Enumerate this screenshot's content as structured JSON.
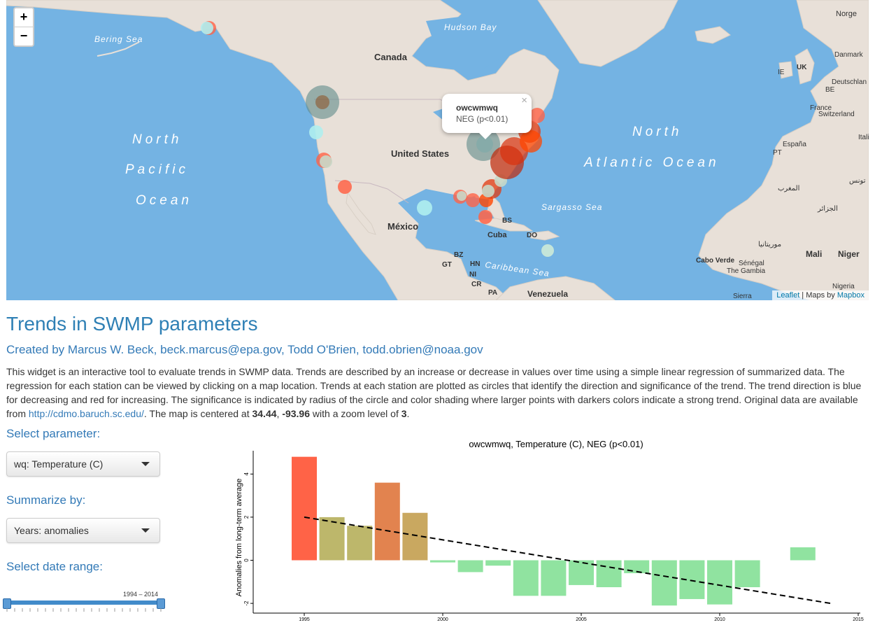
{
  "map": {
    "zoom_in": "+",
    "zoom_out": "−",
    "labels": {
      "bering": "Bering Sea",
      "hudson": "Hudson Bay",
      "canada": "Canada",
      "us": "United States",
      "mexico": "México",
      "north_pacific": [
        "North",
        "Pacific",
        "Ocean"
      ],
      "north_atlantic": [
        "North",
        "Atlantic Ocean"
      ],
      "sargasso": "Sargasso Sea",
      "caribbean": "Caribbean Sea",
      "cuba": "Cuba",
      "bs": "BS",
      "do": "DO",
      "bz": "BZ",
      "gt": "GT",
      "hn": "HN",
      "ni": "NI",
      "cr": "CR",
      "pa": "PA",
      "venezuela": "Venezuela",
      "norge": "Norge",
      "danmark": "Danmark",
      "ie": "IE",
      "uk": "UK",
      "deutschland": "Deutschlan",
      "be": "BE",
      "france": "France",
      "switzerland": "Switzerland",
      "espana": "España",
      "pt": "PT",
      "morocco": "المغرب",
      "tunisia": "تونس",
      "algeria": "الجزائر",
      "mauritania": "موريتانيا",
      "mali": "Mali",
      "niger": "Niger",
      "cabo_verde": "Cabo Verde",
      "senegal": "Sénégal",
      "gambia": "The Gambia",
      "nigeria": "Nigeria",
      "sierra": "Sierra",
      "italia": "Italia"
    },
    "popup": {
      "station": "owcwmwq",
      "result": "NEG (p<0.01)",
      "close": "×"
    },
    "attribution": {
      "leaflet": "Leaflet",
      "sep": " | Maps by ",
      "mapbox": "Mapbox"
    }
  },
  "header": {
    "title": "Trends in SWMP parameters",
    "created_prefix": "Created by Marcus W. Beck, ",
    "email1": "beck.marcus@epa.gov",
    "mid": ", Todd O'Brien, ",
    "email2": "todd.obrien@noaa.gov"
  },
  "description": {
    "text1": "This widget is an interactive tool to evaluate trends in SWMP data. Trends are described by an increase or decrease in values over time using a simple linear regression of summarized data. The regression for each station can be viewed by clicking on a map location. Trends at each station are plotted as circles that identify the direction and significance of the trend. The trend direction is blue for decreasing and red for increasing. The significance is indicated by radius of the circle and color shading where larger points with darkers colors indicate a strong trend. Original data are available from ",
    "link": "http://cdmo.baruch.sc.edu/",
    "text2": ". The map is centered at ",
    "lat": "34.44",
    "comma": ", ",
    "lon": "-93.96",
    "text3": " with a zoom level of ",
    "zoom": "3",
    "period": "."
  },
  "controls": {
    "parameter_label": "Select parameter:",
    "parameter_value": "wq: Temperature (C)",
    "summarize_label": "Summarize by:",
    "summarize_value": "Years: anomalies",
    "date_label": "Select date range:",
    "date_range": "1994 – 2014",
    "date_start": 1994,
    "date_end": 2014
  },
  "chart_data": {
    "type": "bar",
    "title": "owcwmwq, Temperature (C), NEG (p<0.01)",
    "xlabel": "",
    "ylabel": "Anomalies from long-term average",
    "xlim": [
      1990,
      2015
    ],
    "ylim": [
      -2.5,
      5
    ],
    "xticks": [
      1995,
      2000,
      2005,
      2010,
      2015
    ],
    "yticks": [
      -2,
      0,
      2,
      4
    ],
    "x": [
      1995,
      1996,
      1997,
      1998,
      1999,
      2000,
      2001,
      2002,
      2003,
      2004,
      2005,
      2006,
      2007,
      2008,
      2009,
      2010,
      2011,
      2013
    ],
    "values": [
      4.8,
      2.0,
      1.6,
      3.6,
      2.2,
      -0.1,
      -0.55,
      -0.25,
      -1.65,
      -1.65,
      -1.15,
      -1.25,
      -0.6,
      -2.1,
      -1.8,
      -2.05,
      -1.25,
      0.6
    ],
    "colors": [
      "#ff6347",
      "#bdb76b",
      "#bdb76b",
      "#e2834f",
      "#c9a860",
      "#90e3a0",
      "#90e3a0",
      "#90e3a0",
      "#90e3a0",
      "#90e3a0",
      "#90e3a0",
      "#90e3a0",
      "#90e3a0",
      "#90e3a0",
      "#90e3a0",
      "#90e3a0",
      "#90e3a0",
      "#90e3a0"
    ],
    "trend": {
      "x": [
        1995,
        2014
      ],
      "y": [
        2.0,
        -2.0
      ]
    }
  }
}
